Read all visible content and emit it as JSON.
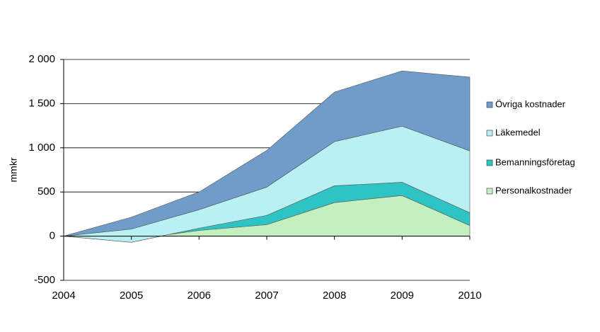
{
  "chart_data": {
    "type": "stacked-area",
    "y_label": "mmkr",
    "categories": [
      "2004",
      "2005",
      "2006",
      "2007",
      "2008",
      "2009",
      "2010"
    ],
    "series": [
      {
        "name": "Personalkostnader",
        "color": "#c4f0c0",
        "values": [
          0,
          -40,
          65,
          130,
          380,
          460,
          120
        ]
      },
      {
        "name": "Bemanningsföretag",
        "color": "#2fc4c4",
        "values": [
          0,
          -30,
          25,
          105,
          190,
          150,
          145
        ]
      },
      {
        "name": "Läkemedel",
        "color": "#b8f0f4",
        "values": [
          0,
          150,
          210,
          320,
          500,
          635,
          700
        ]
      },
      {
        "name": "Övriga kostnader",
        "color": "#6f9cc8",
        "values": [
          0,
          135,
          200,
          415,
          560,
          625,
          835
        ]
      }
    ],
    "ylim": [
      -500,
      2000
    ],
    "yticks": [
      -500,
      0,
      500,
      {
        "value": 1000,
        "label": "1 000"
      },
      {
        "value": 1500,
        "label": "1 500"
      },
      {
        "value": 2000,
        "label": "2 000"
      }
    ],
    "grid": true,
    "legend": "right"
  }
}
